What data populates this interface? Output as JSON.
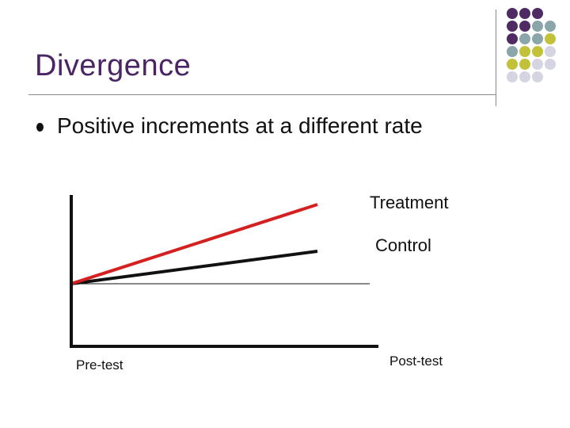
{
  "slide": {
    "title": "Divergence",
    "bullet": "Positive increments at a different rate"
  },
  "diagram": {
    "treatment_label": "Treatment",
    "control_label": "Control",
    "pretest_label": "Pre-test",
    "posttest_label": "Post-test",
    "colors": {
      "treatment": "#d42020",
      "control": "#111111",
      "axis": "#111111",
      "baseline": "#111111"
    }
  },
  "decor": {
    "dot_colors": {
      "purple": "#4f2a63",
      "teal": "#8aa6aa",
      "olive": "#c2c23a",
      "lavender": "#d4d4e2"
    }
  }
}
